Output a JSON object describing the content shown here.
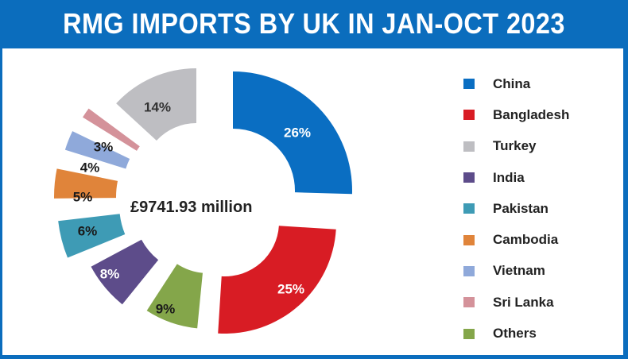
{
  "header": {
    "title": "RMG IMPORTS BY UK IN JAN-OCT 2023"
  },
  "center": {
    "total_label": "£9741.93 million"
  },
  "legend": {
    "items": [
      {
        "label": "China",
        "color": "#0a6ec2"
      },
      {
        "label": "Bangladesh",
        "color": "#d81c24"
      },
      {
        "label": "Turkey",
        "color": "#bebec2"
      },
      {
        "label": "India",
        "color": "#5d4c8a"
      },
      {
        "label": "Pakistan",
        "color": "#3e9bb5"
      },
      {
        "label": "Cambodia",
        "color": "#e0843a"
      },
      {
        "label": "Vietnam",
        "color": "#8fa9da"
      },
      {
        "label": "Sri Lanka",
        "color": "#d4929a"
      },
      {
        "label": "Others",
        "color": "#84a64a"
      }
    ]
  },
  "chart_data": {
    "type": "pie",
    "subtype": "donut",
    "title": "RMG IMPORTS BY UK IN JAN-OCT 2023",
    "center_label": "£9741.93 million",
    "total": 9741.93,
    "unit": "£ million",
    "categories": [
      "China",
      "Bangladesh",
      "Others",
      "India",
      "Pakistan",
      "Cambodia",
      "Vietnam",
      "Sri Lanka",
      "Turkey"
    ],
    "values": [
      26,
      25,
      9,
      8,
      6,
      5,
      4,
      3,
      14
    ],
    "value_labels": [
      "26%",
      "25%",
      "9%",
      "8%",
      "6%",
      "5%",
      "4%",
      "3%",
      "14%"
    ],
    "colors": [
      "#0a6ec2",
      "#d81c24",
      "#84a64a",
      "#5d4c8a",
      "#3e9bb5",
      "#e0843a",
      "#8fa9da",
      "#d4929a",
      "#bebec2"
    ],
    "label_colors": [
      "#ffffff",
      "#ffffff",
      "#1a1a1a",
      "#ffffff",
      "#1a1a1a",
      "#1a1a1a",
      "#1a1a1a",
      "#1a1a1a",
      "#333333"
    ],
    "legend_order": [
      "China",
      "Bangladesh",
      "Turkey",
      "India",
      "Pakistan",
      "Cambodia",
      "Vietnam",
      "Sri Lanka",
      "Others"
    ],
    "legend_position": "right",
    "start_angle": "top, clockwise"
  }
}
